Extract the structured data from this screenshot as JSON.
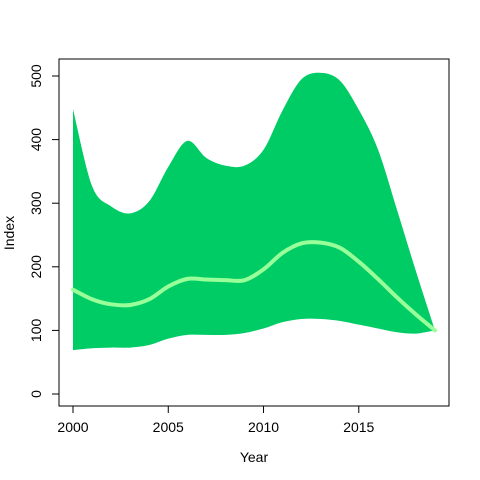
{
  "chart_data": {
    "type": "area",
    "title": "",
    "xlabel": "Year",
    "ylabel": "Index",
    "xlim": [
      1999,
      2020
    ],
    "ylim": [
      -20,
      525
    ],
    "grid": false,
    "legend": "none",
    "xticks": [
      2000,
      2005,
      2010,
      2015
    ],
    "yticks": [
      0,
      100,
      200,
      300,
      400,
      500
    ],
    "x": [
      2000,
      2001,
      2002,
      2003,
      2004,
      2005,
      2006,
      2007,
      2008,
      2009,
      2010,
      2011,
      2012,
      2013,
      2014,
      2015,
      2016,
      2017,
      2018,
      2019
    ],
    "series": [
      {
        "role": "band_upper",
        "color": "#00cc66",
        "values": [
          448,
          327,
          295,
          284,
          303,
          357,
          398,
          371,
          359,
          359,
          384,
          446,
          495,
          505,
          493,
          447,
          385,
          290,
          193,
          100
        ]
      },
      {
        "role": "band_lower",
        "color": "#00cc66",
        "values": [
          69,
          72,
          73,
          73,
          77,
          87,
          93,
          93,
          93,
          96,
          103,
          113,
          118,
          118,
          115,
          109,
          103,
          97,
          95,
          100
        ]
      },
      {
        "role": "central_line",
        "color": "#99ff99",
        "values": [
          164,
          149,
          141,
          140,
          149,
          169,
          181,
          180,
          179,
          179,
          196,
          222,
          237,
          238,
          230,
          208,
          181,
          152,
          125,
          100
        ]
      }
    ]
  }
}
